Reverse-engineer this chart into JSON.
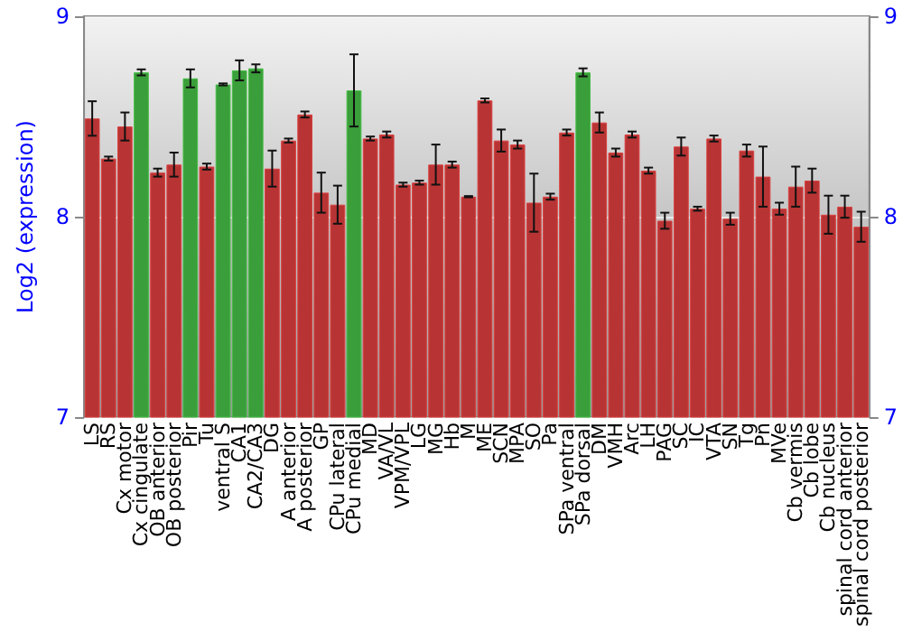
{
  "chart_data": {
    "type": "bar",
    "ylabel": "Log2 (expression)",
    "categories": [
      "LS",
      "RS",
      "Cx motor",
      "Cx cingulate",
      "OB anterior",
      "OB posterior",
      "Pir",
      "Tu",
      "ventral S",
      "CA1",
      "CA2/CA3",
      "DG",
      "A anterior",
      "A posterior",
      "GP",
      "CPu lateral",
      "CPu medial",
      "MD",
      "VA/VL",
      "VPM/VPL",
      "LG",
      "MG",
      "Hb",
      "M",
      "ME",
      "SCN",
      "MPA",
      "SO",
      "Pa",
      "SPa ventral",
      "SPa dorsal",
      "DM",
      "VMH",
      "Arc",
      "LH",
      "PAG",
      "SC",
      "IC",
      "VTA",
      "SN",
      "Tg",
      "Pn",
      "MVe",
      "Cb vermis",
      "Cb lobe",
      "Cb nucleus",
      "spinal cord anterior",
      "spinal cord posterior"
    ],
    "values": [
      8.49,
      8.29,
      8.45,
      8.72,
      8.22,
      8.26,
      8.69,
      8.25,
      8.66,
      8.73,
      8.74,
      8.24,
      8.38,
      8.51,
      8.12,
      8.06,
      8.63,
      8.39,
      8.41,
      8.16,
      8.17,
      8.26,
      8.26,
      8.1,
      8.58,
      8.38,
      8.36,
      8.07,
      8.1,
      8.42,
      8.72,
      8.47,
      8.32,
      8.41,
      8.23,
      7.98,
      8.35,
      8.04,
      8.39,
      7.99,
      8.33,
      8.2,
      8.04,
      8.15,
      8.18,
      8.01,
      8.05,
      7.95
    ],
    "errors": [
      0.086,
      0.01,
      0.07,
      0.015,
      0.02,
      0.06,
      0.045,
      0.015,
      0.005,
      0.05,
      0.02,
      0.09,
      0.01,
      0.015,
      0.1,
      0.095,
      0.18,
      0.01,
      0.015,
      0.01,
      0.01,
      0.1,
      0.015,
      0.003,
      0.01,
      0.055,
      0.02,
      0.145,
      0.015,
      0.015,
      0.02,
      0.05,
      0.02,
      0.015,
      0.015,
      0.04,
      0.045,
      0.01,
      0.015,
      0.03,
      0.03,
      0.15,
      0.03,
      0.1,
      0.06,
      0.095,
      0.055,
      0.075
    ],
    "colors": [
      "#b83434",
      "#b83434",
      "#b83434",
      "#3a9e3a",
      "#b83434",
      "#b83434",
      "#3a9e3a",
      "#b83434",
      "#3a9e3a",
      "#3a9e3a",
      "#3a9e3a",
      "#b83434",
      "#b83434",
      "#b83434",
      "#b83434",
      "#b83434",
      "#3a9e3a",
      "#b83434",
      "#b83434",
      "#b83434",
      "#b83434",
      "#b83434",
      "#b83434",
      "#b83434",
      "#b83434",
      "#b83434",
      "#b83434",
      "#b83434",
      "#b83434",
      "#b83434",
      "#3a9e3a",
      "#b83434",
      "#b83434",
      "#b83434",
      "#b83434",
      "#b83434",
      "#b83434",
      "#b83434",
      "#b83434",
      "#b83434",
      "#b83434",
      "#b83434",
      "#b83434",
      "#b83434",
      "#b83434",
      "#b83434",
      "#b83434",
      "#b83434"
    ],
    "ylim": [
      7,
      9
    ],
    "yticks": [
      7,
      8,
      9
    ],
    "y2lim": [
      7,
      9
    ],
    "y2ticks": [
      7,
      8,
      9
    ],
    "grid": "y"
  }
}
